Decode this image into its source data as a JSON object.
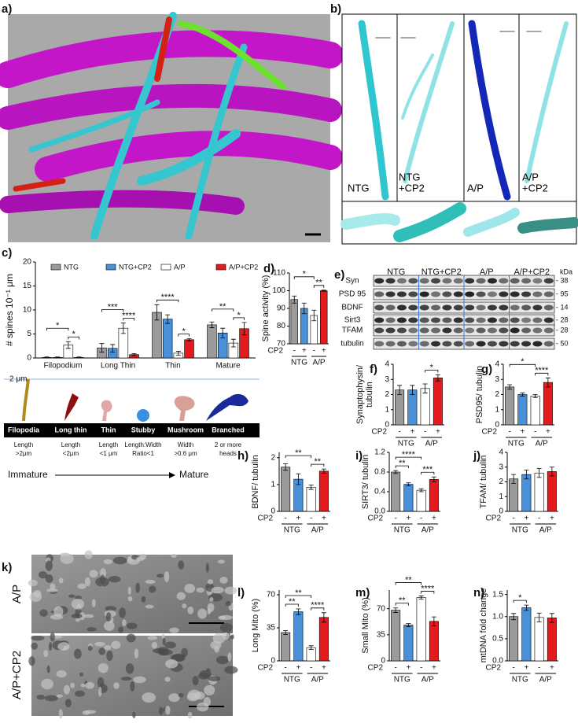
{
  "figure": {
    "panel_labels": [
      "a)",
      "b)",
      "c)",
      "d)",
      "e)",
      "f)",
      "g)",
      "h)",
      "i)",
      "j)",
      "k)",
      "l)",
      "m)",
      "n)"
    ],
    "b_labels": [
      [
        "NTG"
      ],
      [
        "NTG",
        "+CP2"
      ],
      [
        "A/P"
      ],
      [
        "A/P",
        "+CP2"
      ]
    ],
    "k_labels": [
      "A/P",
      "A/P+CP2"
    ],
    "spine_types": {
      "scale": "2 μm",
      "names": [
        "Filopodia",
        "Long thin",
        "Thin",
        "Stubby",
        "Mushroom",
        "Branched"
      ],
      "criteria": [
        [
          "Length",
          ">2μm"
        ],
        [
          "Length",
          "<2μm"
        ],
        [
          "Length",
          "<1 μm"
        ],
        [
          "Length:Width",
          "Ratio<1"
        ],
        [
          "Width",
          ">0.6 μm"
        ],
        [
          "2 or more",
          "heads"
        ]
      ],
      "immature": "Immature",
      "mature": "Mature"
    },
    "blot": {
      "groups": [
        "NTG",
        "NTG+CP2",
        "A/P",
        "A/P+CP2"
      ],
      "rows": [
        "Syn",
        "PSD 95",
        "BDNF",
        "Sirt3",
        "TFAM",
        "tubulin"
      ],
      "kda_title": "kDa",
      "kda": [
        "- 38",
        "- 95",
        "- 14",
        "- 28",
        "- 28",
        "- 50"
      ]
    }
  },
  "chart_data": [
    {
      "type": "grouped-bar",
      "y_label": "# spines 10⁻¹ μm",
      "categories": [
        "Filopodium",
        "Long Thin",
        "Thin",
        "Mature"
      ],
      "series": [
        {
          "name": "NTG",
          "color": "#9b9b9b",
          "values": [
            0.1,
            2.1,
            9.5,
            6.9
          ],
          "errors": [
            0.1,
            0.9,
            1.6,
            0.6
          ]
        },
        {
          "name": "NTG+CP2",
          "color": "#4a90d9",
          "values": [
            0.1,
            2.0,
            8.1,
            5.2
          ],
          "errors": [
            0.1,
            0.8,
            0.9,
            1.0
          ]
        },
        {
          "name": "A/P",
          "color": "#ffffff",
          "values": [
            2.7,
            6.2,
            1.0,
            3.1
          ],
          "errors": [
            0.7,
            1.1,
            0.4,
            0.8
          ]
        },
        {
          "name": "A/P+CP2",
          "color": "#e41a1c",
          "values": [
            0.1,
            0.7,
            3.8,
            6.1
          ],
          "errors": [
            0.1,
            0.2,
            0.2,
            1.3
          ]
        }
      ],
      "ylim": [
        0,
        20
      ],
      "yticks": [
        0,
        5,
        10,
        15,
        20
      ],
      "legend": "top",
      "annotations": [
        {
          "text": "*",
          "category": 0,
          "pair": [
            2,
            3
          ]
        },
        {
          "text": "*",
          "category": 0,
          "pair": [
            0,
            2
          ]
        },
        {
          "text": "****",
          "category": 1,
          "pair": [
            2,
            3
          ]
        },
        {
          "text": "***",
          "category": 1,
          "pair": [
            0,
            2
          ]
        },
        {
          "text": "*",
          "category": 2,
          "pair": [
            2,
            3
          ]
        },
        {
          "text": "****",
          "category": 2,
          "pair": [
            0,
            2
          ]
        },
        {
          "text": "*",
          "category": 3,
          "pair": [
            2,
            3
          ]
        },
        {
          "text": "**",
          "category": 3,
          "pair": [
            0,
            2
          ]
        }
      ]
    },
    {
      "type": "bar",
      "y_label": [
        "Spine activity (%)"
      ],
      "x_label": "CP2",
      "categories": [
        "-",
        "+",
        "-",
        "+"
      ],
      "groups": [
        "NTG",
        "A/P"
      ],
      "colors": [
        "#9b9b9b",
        "#4a90d9",
        "#ffffff",
        "#e41a1c"
      ],
      "values": [
        95,
        90,
        86,
        100
      ],
      "errors": [
        2,
        3,
        3,
        0.3
      ],
      "ylim": [
        70,
        110
      ],
      "yticks": [
        70,
        80,
        90,
        100,
        110
      ],
      "annotations": [
        {
          "text": "**",
          "pair": [
            2,
            3
          ]
        },
        {
          "text": "*",
          "pair": [
            0,
            2
          ]
        }
      ]
    },
    {
      "type": "bar",
      "y_label": [
        "Synaptophysin/",
        "tubulin"
      ],
      "x_label": "CP2",
      "categories": [
        "-",
        "+",
        "-",
        "+"
      ],
      "groups": [
        "NTG",
        "A/P"
      ],
      "colors": [
        "#9b9b9b",
        "#4a90d9",
        "#ffffff",
        "#e41a1c"
      ],
      "values": [
        2.3,
        2.3,
        2.4,
        3.1
      ],
      "errors": [
        0.3,
        0.3,
        0.3,
        0.2
      ],
      "ylim": [
        0,
        4
      ],
      "yticks": [
        0,
        1,
        2,
        3,
        4
      ],
      "annotations": [
        {
          "text": "*",
          "pair": [
            2,
            3
          ]
        }
      ]
    },
    {
      "type": "bar",
      "y_label": [
        "PSD95/ tubulin"
      ],
      "x_label": "CP2",
      "categories": [
        "-",
        "+",
        "-",
        "+"
      ],
      "groups": [
        "NTG",
        "A/P"
      ],
      "colors": [
        "#9b9b9b",
        "#4a90d9",
        "#ffffff",
        "#e41a1c"
      ],
      "values": [
        2.5,
        2.0,
        1.9,
        2.8
      ],
      "errors": [
        0.15,
        0.1,
        0.1,
        0.3
      ],
      "ylim": [
        0,
        4
      ],
      "yticks": [
        0,
        1,
        2,
        3,
        4
      ],
      "annotations": [
        {
          "text": "****",
          "pair": [
            2,
            3
          ]
        },
        {
          "text": "*",
          "pair": [
            0,
            2
          ]
        }
      ]
    },
    {
      "type": "bar",
      "y_label": [
        "BDNF/ tubulin"
      ],
      "x_label": "CP2",
      "categories": [
        "-",
        "+",
        "-",
        "+"
      ],
      "groups": [
        "NTG",
        "A/P"
      ],
      "colors": [
        "#9b9b9b",
        "#4a90d9",
        "#ffffff",
        "#e41a1c"
      ],
      "values": [
        1.65,
        1.2,
        0.9,
        1.5
      ],
      "errors": [
        0.12,
        0.2,
        0.08,
        0.08
      ],
      "ylim": [
        0,
        2.2
      ],
      "yticks": [
        0,
        1,
        2
      ],
      "annotations": [
        {
          "text": "**",
          "pair": [
            2,
            3
          ]
        },
        {
          "text": "**",
          "pair": [
            0,
            2
          ]
        }
      ]
    },
    {
      "type": "bar",
      "y_label": [
        "SIRT3/ tubulin"
      ],
      "x_label": "CP2",
      "categories": [
        "-",
        "+",
        "-",
        "+"
      ],
      "groups": [
        "NTG",
        "A/P"
      ],
      "colors": [
        "#9b9b9b",
        "#4a90d9",
        "#ffffff",
        "#e41a1c"
      ],
      "values": [
        0.8,
        0.55,
        0.43,
        0.65
      ],
      "errors": [
        0.03,
        0.03,
        0.03,
        0.05
      ],
      "ylim": [
        0,
        1.2
      ],
      "yticks": [
        {
          "value": 0,
          "label": "0.0"
        },
        0.4,
        0.8,
        1.2
      ],
      "annotations": [
        {
          "text": "**",
          "pair": [
            0,
            1
          ]
        },
        {
          "text": "***",
          "pair": [
            2,
            3
          ]
        },
        {
          "text": "****",
          "pair": [
            0,
            2
          ]
        }
      ]
    },
    {
      "type": "bar",
      "y_label": [
        "TFAM/ tubulin"
      ],
      "x_label": "CP2",
      "categories": [
        "-",
        "+",
        "-",
        "+"
      ],
      "groups": [
        "NTG",
        "A/P"
      ],
      "colors": [
        "#9b9b9b",
        "#4a90d9",
        "#ffffff",
        "#e41a1c"
      ],
      "values": [
        2.2,
        2.5,
        2.6,
        2.7
      ],
      "errors": [
        0.3,
        0.3,
        0.3,
        0.3
      ],
      "ylim": [
        0,
        4
      ],
      "yticks": [
        0,
        1,
        2,
        3,
        4
      ],
      "annotations": []
    },
    {
      "type": "bar",
      "y_label": [
        "Long Mito (%)"
      ],
      "x_label": "CP2",
      "categories": [
        "-",
        "+",
        "-",
        "+"
      ],
      "groups": [
        "NTG",
        "A/P"
      ],
      "colors": [
        "#9b9b9b",
        "#4a90d9",
        "#ffffff",
        "#e41a1c"
      ],
      "values": [
        30,
        52,
        14,
        46
      ],
      "errors": [
        2,
        3,
        2,
        5
      ],
      "ylim": [
        0,
        75
      ],
      "yticks": [
        0,
        35,
        70
      ],
      "annotations": [
        {
          "text": "**",
          "pair": [
            0,
            1
          ]
        },
        {
          "text": "****",
          "pair": [
            2,
            3
          ]
        },
        {
          "text": "**",
          "pair": [
            0,
            2
          ]
        }
      ]
    },
    {
      "type": "bar",
      "y_label": [
        "Small Mito (%)"
      ],
      "x_label": "CP2",
      "categories": [
        "-",
        "+",
        "-",
        "+"
      ],
      "groups": [
        "NTG",
        "A/P"
      ],
      "colors": [
        "#9b9b9b",
        "#4a90d9",
        "#ffffff",
        "#e41a1c"
      ],
      "values": [
        68,
        48,
        85,
        53
      ],
      "errors": [
        3,
        2,
        2,
        6
      ],
      "ylim": [
        0,
        95
      ],
      "yticks": [
        0,
        35,
        70
      ],
      "annotations": [
        {
          "text": "**",
          "pair": [
            0,
            1
          ]
        },
        {
          "text": "****",
          "pair": [
            2,
            3
          ]
        },
        {
          "text": "**",
          "pair": [
            0,
            2
          ]
        }
      ]
    },
    {
      "type": "bar",
      "y_label": [
        "mtDNA fold change"
      ],
      "x_label": "CP2",
      "categories": [
        "-",
        "+",
        "-",
        "+"
      ],
      "groups": [
        "NTG",
        "A/P"
      ],
      "colors": [
        "#9b9b9b",
        "#4a90d9",
        "#ffffff",
        "#e41a1c"
      ],
      "values": [
        1.0,
        1.2,
        0.98,
        0.97
      ],
      "errors": [
        0.07,
        0.06,
        0.1,
        0.1
      ],
      "ylim": [
        0,
        1.6
      ],
      "yticks": [
        {
          "value": 0,
          "label": "0.0"
        },
        0.5,
        {
          "value": 1,
          "label": "1.0"
        },
        1.5
      ],
      "annotations": [
        {
          "text": "*",
          "pair": [
            0,
            1
          ]
        }
      ]
    }
  ]
}
